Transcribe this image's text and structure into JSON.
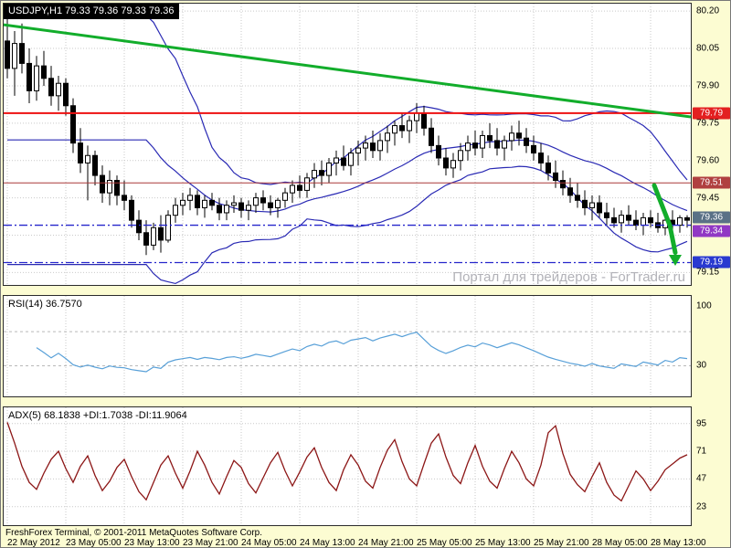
{
  "header": {
    "symbol_info": "USDJPY,H1 79.33 79.36 79.33 79.36"
  },
  "watermark": "Портал для трейдеров - ForTrader.ru",
  "status_bar": {
    "copyright": "FreshForex Terminal, © 2001-2011 MetaQuotes Software Corp."
  },
  "time_axis": {
    "labels": [
      "22 May 2012",
      "23 May 05:00",
      "23 May 13:00",
      "23 May 21:00",
      "24 May 05:00",
      "24 May 13:00",
      "24 May 21:00",
      "25 May 05:00",
      "25 May 13:00",
      "25 May 21:00",
      "28 May 05:00",
      "28 May 13:00"
    ]
  },
  "chart_data": [
    {
      "type": "candlestick",
      "name": "USDJPY H1 price chart",
      "ylim": [
        79.1,
        80.23
      ],
      "y_ticks": [
        80.2,
        80.05,
        79.9,
        79.75,
        79.6,
        79.45,
        79.3,
        79.15
      ],
      "bollinger": {
        "period": 20,
        "deviation": 2,
        "color": "#2a2ab4"
      },
      "levels": [
        {
          "price": 79.79,
          "color": "#ee1111",
          "width": 2,
          "style": "solid",
          "badge": "79.79",
          "badge_bg": "#e32020",
          "badge_dy": 0
        },
        {
          "price": 79.51,
          "color": "#aa3838",
          "width": 1,
          "style": "solid",
          "badge": "79.51",
          "badge_bg": "#b04040",
          "badge_dy": 0
        },
        {
          "price": 79.34,
          "color": "#2626cc",
          "width": 1.3,
          "style": "dashdot",
          "badge": "79.34",
          "badge_bg": "#9138c4",
          "badge_dy": 6
        },
        {
          "price": 79.19,
          "color": "#2626cc",
          "width": 1.3,
          "style": "dashdot",
          "badge": "79.19",
          "badge_bg": "#2a3ad0",
          "badge_dy": 0
        }
      ],
      "bid_badge": {
        "text": "79.36",
        "price": 79.36,
        "bg": "#5a7186",
        "dy": -3
      },
      "trendline": {
        "p_start": 80.145,
        "p_end": 79.775,
        "color": "#12ad2b",
        "width": 3
      },
      "arrow": {
        "color": "#12ad2b",
        "points": [
          [
            712,
            79.5
          ],
          [
            729,
            79.34
          ],
          [
            735,
            79.23
          ]
        ],
        "head_p": 79.21
      },
      "candles": [
        [
          80.08,
          80.17,
          79.93,
          79.97
        ],
        [
          79.97,
          80.12,
          79.86,
          80.07
        ],
        [
          80.07,
          80.15,
          79.95,
          79.99
        ],
        [
          79.99,
          80.05,
          79.83,
          79.88
        ],
        [
          79.88,
          80.02,
          79.84,
          79.98
        ],
        [
          79.98,
          80.04,
          79.9,
          79.93
        ],
        [
          79.93,
          79.98,
          79.82,
          79.86
        ],
        [
          79.86,
          79.94,
          79.8,
          79.91
        ],
        [
          79.91,
          79.93,
          79.78,
          79.82
        ],
        [
          79.82,
          79.85,
          79.63,
          79.67
        ],
        [
          79.67,
          79.73,
          79.55,
          79.59
        ],
        [
          79.59,
          79.66,
          79.44,
          79.62
        ],
        [
          79.62,
          79.64,
          79.5,
          79.54
        ],
        [
          79.54,
          79.58,
          79.43,
          79.47
        ],
        [
          79.47,
          79.56,
          79.42,
          79.52
        ],
        [
          79.52,
          79.54,
          79.42,
          79.46
        ],
        [
          79.46,
          79.52,
          79.4,
          79.44
        ],
        [
          79.44,
          79.46,
          79.33,
          79.36
        ],
        [
          79.36,
          79.4,
          79.28,
          79.31
        ],
        [
          79.31,
          79.36,
          79.22,
          79.26
        ],
        [
          79.26,
          79.35,
          79.24,
          79.33
        ],
        [
          79.33,
          79.38,
          79.23,
          79.28
        ],
        [
          79.28,
          79.4,
          79.27,
          79.38
        ],
        [
          79.38,
          79.45,
          79.35,
          79.42
        ],
        [
          79.42,
          79.47,
          79.38,
          79.44
        ],
        [
          79.44,
          79.49,
          79.4,
          79.46
        ],
        [
          79.46,
          79.48,
          79.38,
          79.41
        ],
        [
          79.41,
          79.46,
          79.37,
          79.44
        ],
        [
          79.44,
          79.47,
          79.4,
          79.42
        ],
        [
          79.42,
          79.45,
          79.36,
          79.39
        ],
        [
          79.39,
          79.44,
          79.36,
          79.42
        ],
        [
          79.42,
          79.46,
          79.39,
          79.43
        ],
        [
          79.43,
          79.45,
          79.37,
          79.4
        ],
        [
          79.4,
          79.44,
          79.36,
          79.42
        ],
        [
          79.42,
          79.47,
          79.39,
          79.45
        ],
        [
          79.45,
          79.48,
          79.4,
          79.43
        ],
        [
          79.43,
          79.46,
          79.38,
          79.41
        ],
        [
          79.41,
          79.45,
          79.37,
          79.44
        ],
        [
          79.44,
          79.49,
          79.41,
          79.47
        ],
        [
          79.47,
          79.52,
          79.43,
          79.5
        ],
        [
          79.5,
          79.54,
          79.45,
          79.48
        ],
        [
          79.48,
          79.55,
          79.45,
          79.53
        ],
        [
          79.53,
          79.59,
          79.49,
          79.56
        ],
        [
          79.56,
          79.6,
          79.5,
          79.54
        ],
        [
          79.54,
          79.61,
          79.51,
          79.59
        ],
        [
          79.59,
          79.64,
          79.54,
          79.61
        ],
        [
          79.61,
          79.66,
          79.56,
          79.58
        ],
        [
          79.58,
          79.65,
          79.54,
          79.63
        ],
        [
          79.63,
          79.68,
          79.58,
          79.65
        ],
        [
          79.65,
          79.7,
          79.6,
          79.67
        ],
        [
          79.67,
          79.72,
          79.61,
          79.64
        ],
        [
          79.64,
          79.71,
          79.6,
          79.68
        ],
        [
          79.68,
          79.74,
          79.63,
          79.71
        ],
        [
          79.71,
          79.76,
          79.66,
          79.74
        ],
        [
          79.74,
          79.79,
          79.69,
          79.72
        ],
        [
          79.72,
          79.78,
          79.67,
          79.76
        ],
        [
          79.76,
          79.83,
          79.71,
          79.79
        ],
        [
          79.79,
          79.82,
          79.7,
          79.73
        ],
        [
          79.73,
          79.77,
          79.63,
          79.66
        ],
        [
          79.66,
          79.7,
          79.58,
          79.61
        ],
        [
          79.61,
          79.65,
          79.54,
          79.57
        ],
        [
          79.57,
          79.63,
          79.53,
          79.6
        ],
        [
          79.6,
          79.67,
          79.56,
          79.64
        ],
        [
          79.64,
          79.7,
          79.6,
          79.67
        ],
        [
          79.67,
          79.72,
          79.62,
          79.65
        ],
        [
          79.65,
          79.72,
          79.61,
          79.7
        ],
        [
          79.7,
          79.75,
          79.65,
          79.68
        ],
        [
          79.68,
          79.73,
          79.62,
          79.65
        ],
        [
          79.65,
          79.7,
          79.6,
          79.68
        ],
        [
          79.68,
          79.74,
          79.64,
          79.71
        ],
        [
          79.71,
          79.76,
          79.66,
          79.69
        ],
        [
          79.69,
          79.73,
          79.63,
          79.66
        ],
        [
          79.66,
          79.7,
          79.6,
          79.63
        ],
        [
          79.63,
          79.67,
          79.56,
          79.59
        ],
        [
          79.59,
          79.62,
          79.52,
          79.55
        ],
        [
          79.55,
          79.6,
          79.49,
          79.52
        ],
        [
          79.52,
          79.56,
          79.46,
          79.49
        ],
        [
          79.49,
          79.53,
          79.43,
          79.46
        ],
        [
          79.46,
          79.51,
          79.41,
          79.44
        ],
        [
          79.44,
          79.48,
          79.38,
          79.41
        ],
        [
          79.41,
          79.46,
          79.36,
          79.43
        ],
        [
          79.43,
          79.46,
          79.37,
          79.39
        ],
        [
          79.39,
          79.43,
          79.34,
          79.37
        ],
        [
          79.37,
          79.41,
          79.33,
          79.35
        ],
        [
          79.35,
          79.4,
          79.31,
          79.38
        ],
        [
          79.38,
          79.42,
          79.34,
          79.36
        ],
        [
          79.36,
          79.4,
          79.32,
          79.34
        ],
        [
          79.34,
          79.39,
          79.3,
          79.37
        ],
        [
          79.37,
          79.4,
          79.33,
          79.35
        ],
        [
          79.35,
          79.39,
          79.31,
          79.33
        ],
        [
          79.33,
          79.38,
          79.3,
          79.36
        ],
        [
          79.36,
          79.4,
          79.32,
          79.34
        ],
        [
          79.34,
          79.38,
          79.31,
          79.37
        ],
        [
          79.37,
          79.38,
          79.33,
          79.36
        ]
      ]
    },
    {
      "type": "line",
      "name": "RSI",
      "label": "RSI(14) 36.7570",
      "period": 14,
      "color": "#58a0d8",
      "ylim": [
        -6,
        112
      ],
      "level_lines": [
        70,
        30
      ],
      "axis_labels": [
        {
          "value": 100,
          "text": "100"
        },
        {
          "value": 30,
          "text": "30"
        }
      ]
    },
    {
      "type": "line",
      "name": "ADX",
      "label": "ADX(5) 68.1838 +DI:1.7038 -DI:11.9064",
      "color": "#8c1616",
      "ylim": [
        7,
        109
      ],
      "axis_labels": [
        {
          "value": 95,
          "text": "95"
        },
        {
          "value": 71,
          "text": "71"
        },
        {
          "value": 47,
          "text": "47"
        },
        {
          "value": 23,
          "text": "23"
        }
      ],
      "values": [
        96,
        78,
        58,
        44,
        38,
        52,
        64,
        71,
        56,
        44,
        58,
        67,
        50,
        37,
        45,
        57,
        64,
        49,
        36,
        29,
        44,
        59,
        67,
        52,
        39,
        54,
        71,
        59,
        44,
        34,
        49,
        63,
        57,
        43,
        35,
        48,
        61,
        70,
        54,
        41,
        53,
        66,
        74,
        57,
        44,
        37,
        55,
        68,
        59,
        45,
        39,
        57,
        72,
        81,
        62,
        47,
        41,
        60,
        78,
        86,
        66,
        50,
        43,
        61,
        76,
        58,
        45,
        39,
        56,
        71,
        61,
        47,
        41,
        59,
        87,
        93,
        69,
        51,
        42,
        36,
        49,
        61,
        44,
        33,
        28,
        41,
        54,
        47,
        37,
        45,
        55,
        60,
        65,
        68
      ]
    }
  ]
}
